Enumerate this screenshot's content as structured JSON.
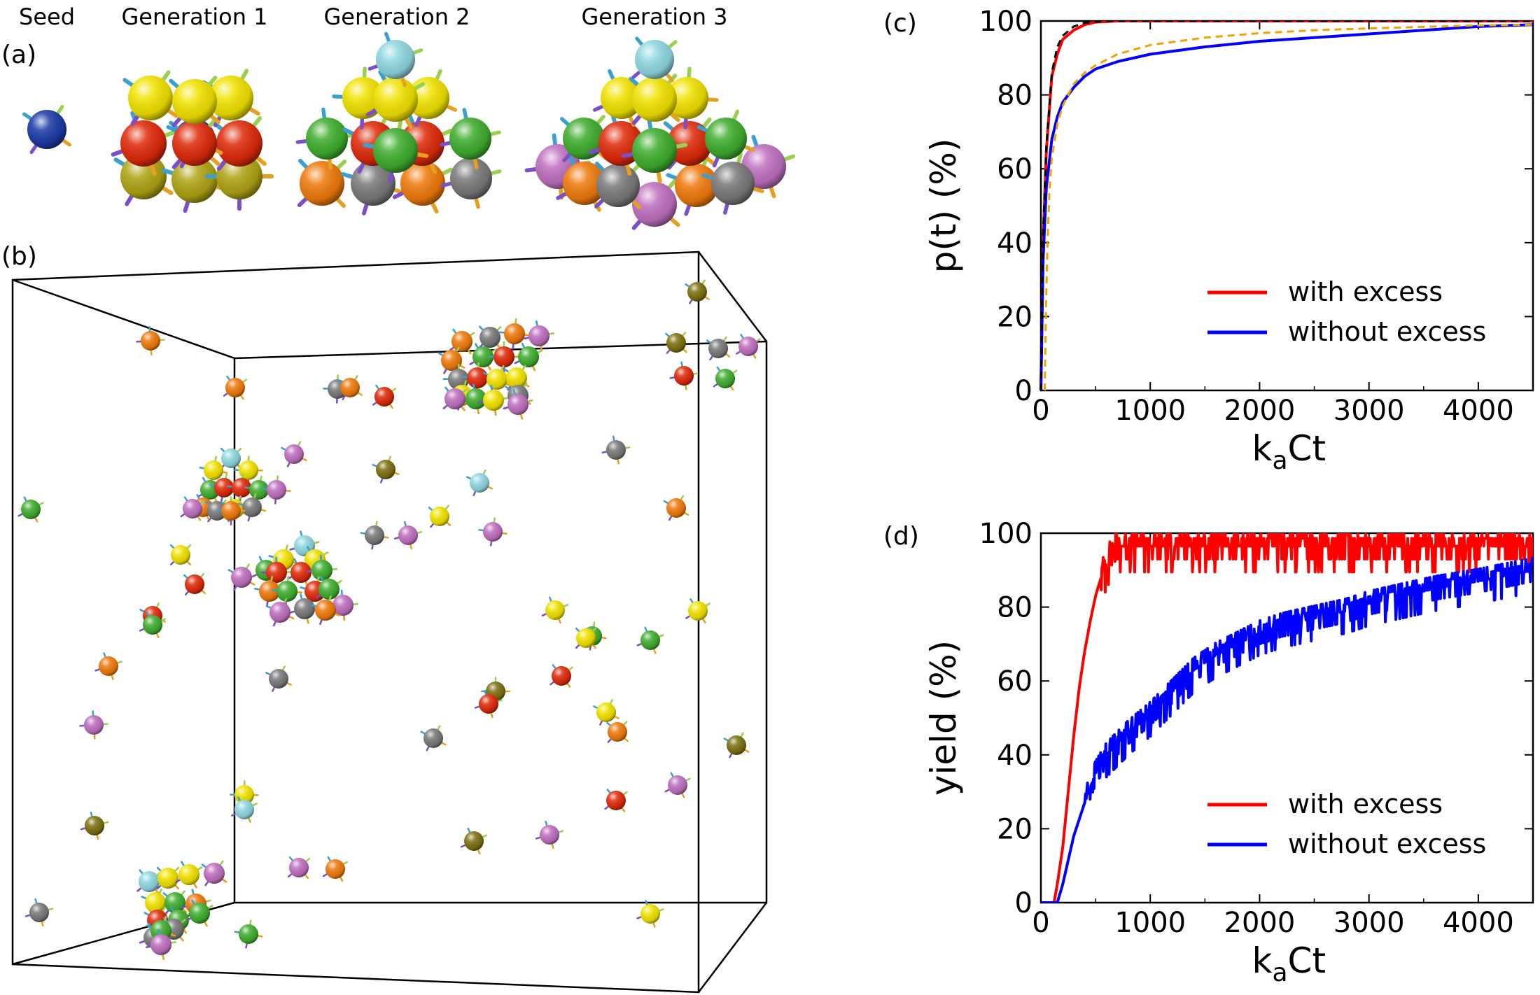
{
  "panel_a": {
    "label": "(a)",
    "headers": [
      "Seed",
      "Generation 1",
      "Generation 2",
      "Generation 3"
    ]
  },
  "panel_b": {
    "label": "(b)"
  },
  "palette": {
    "blue": "#1c3aa8",
    "yellow": "#f2e300",
    "red": "#e02a0a",
    "olive": "#b0a414",
    "green": "#3fae2e",
    "orange": "#f07a0c",
    "gray": "#7a7a7a",
    "cyan": "#8fd8e0",
    "purple": "#c070c0",
    "dark_olive": "#7d7010"
  },
  "chart_data": [
    {
      "type": "line",
      "panel_label": "(c)",
      "xlabel": "k",
      "xlabel_sub": "a",
      "xlabel_tail": "Ct",
      "ylabel": "p(t) (%)",
      "xlim": [
        0,
        4500
      ],
      "ylim": [
        0,
        100
      ],
      "xticks": [
        "0",
        "1000",
        "2000",
        "3000",
        "4000"
      ],
      "yticks": [
        "0",
        "20",
        "40",
        "60",
        "80",
        "100"
      ],
      "legend_position": "lower-right",
      "series": [
        {
          "name": "with excess",
          "color": "#ff0000",
          "x": [
            0,
            20,
            50,
            100,
            150,
            200,
            300,
            400,
            500,
            700,
            1000,
            4500
          ],
          "y": [
            0,
            40,
            65,
            85,
            91,
            95,
            97.5,
            99,
            99.7,
            100,
            100,
            100
          ]
        },
        {
          "name": "without excess",
          "color": "#0000ff",
          "x": [
            0,
            20,
            50,
            100,
            150,
            200,
            300,
            400,
            500,
            700,
            1000,
            1500,
            2000,
            2500,
            3000,
            3500,
            4000,
            4500
          ],
          "y": [
            0,
            35,
            55,
            68,
            74,
            78,
            82,
            85,
            87,
            89,
            91,
            93,
            94.5,
            95.5,
            96.5,
            97.5,
            98.5,
            99
          ]
        },
        {
          "name": "",
          "color": "#000000",
          "dash": "10,7",
          "x": [
            0,
            20,
            50,
            100,
            150,
            200,
            300,
            400,
            500,
            600,
            1000,
            4500
          ],
          "y": [
            0,
            42,
            66,
            86,
            93,
            96,
            98.5,
            99.5,
            99.8,
            100,
            100,
            100
          ]
        },
        {
          "name": "",
          "color": "#f2a100",
          "dash": "10,7",
          "x": [
            35,
            45,
            60,
            80,
            100,
            150,
            200,
            300,
            400,
            500,
            700,
            1000,
            1500,
            2000,
            2500,
            3000,
            3500,
            4000,
            4500
          ],
          "y": [
            0,
            20,
            40,
            55,
            63,
            72,
            77,
            83,
            86,
            88,
            91,
            93.5,
            95.5,
            96.7,
            97.5,
            98,
            98.4,
            98.8,
            99
          ]
        }
      ]
    },
    {
      "type": "line",
      "panel_label": "(d)",
      "xlabel": "k",
      "xlabel_sub": "a",
      "xlabel_tail": "Ct",
      "ylabel": "yield (%)",
      "xlim": [
        0,
        4500
      ],
      "ylim": [
        0,
        100
      ],
      "xticks": [
        "0",
        "1000",
        "2000",
        "3000",
        "4000"
      ],
      "yticks": [
        "0",
        "20",
        "40",
        "60",
        "80",
        "100"
      ],
      "legend_position": "lower-right",
      "series": [
        {
          "name": "with excess",
          "color": "#ff0000",
          "x": [
            0,
            120,
            150,
            200,
            250,
            300,
            350,
            400,
            450,
            500,
            550,
            600,
            650,
            700,
            1000,
            2000,
            3000,
            4000,
            4500
          ],
          "y": [
            0,
            0,
            5,
            15,
            30,
            45,
            58,
            68,
            76,
            83,
            88,
            92,
            95,
            96.5,
            96.5,
            96.5,
            96.5,
            96.5,
            96.5
          ],
          "noise": 7,
          "noise_from": 550
        },
        {
          "name": "without excess",
          "color": "#0000ff",
          "x": [
            0,
            150,
            200,
            300,
            400,
            500,
            600,
            700,
            800,
            1000,
            1200,
            1400,
            1600,
            1800,
            2000,
            2200,
            2500,
            2800,
            3000,
            3300,
            3600,
            4000,
            4500
          ],
          "y": [
            0,
            0,
            5,
            18,
            27,
            35,
            40,
            43,
            46,
            51,
            57,
            63,
            67,
            70,
            73,
            75,
            77,
            79,
            81,
            83,
            85,
            87,
            90
          ],
          "noise": 6,
          "noise_from": 400
        }
      ]
    }
  ]
}
